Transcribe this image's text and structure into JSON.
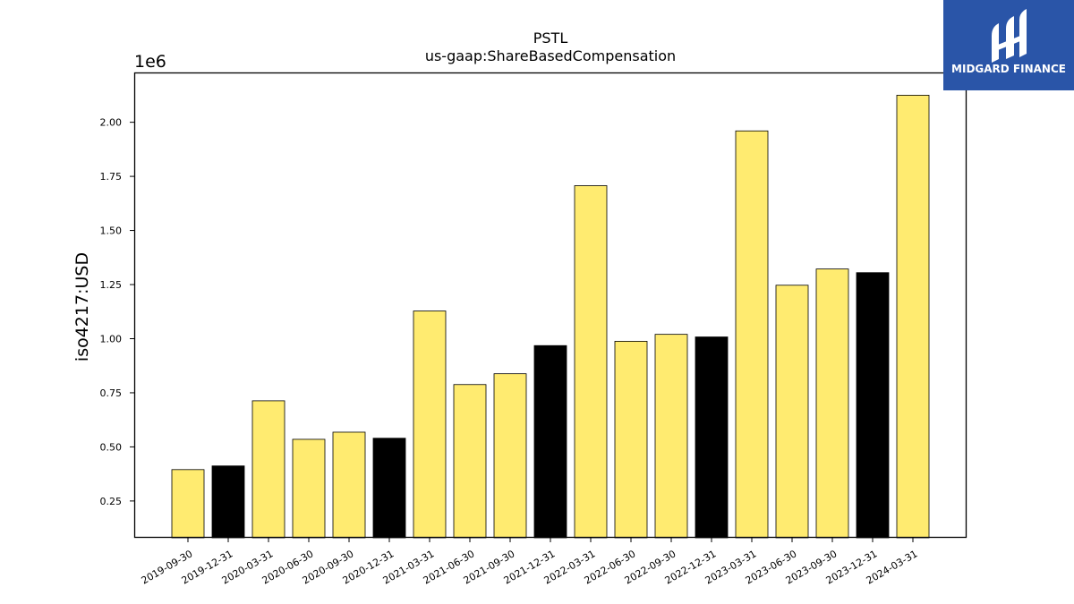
{
  "chart_data": {
    "type": "bar",
    "title": "PSTL",
    "subtitle": "us-gaap:ShareBasedCompensation",
    "ylabel": "iso4217:USD",
    "xlabel": "",
    "y_multiplier_label": "1e6",
    "ylim": [
      80000,
      2230000
    ],
    "y_ticks": [
      250000,
      500000,
      750000,
      1000000,
      1250000,
      1500000,
      1750000,
      2000000
    ],
    "y_tick_labels": [
      "0.25",
      "0.50",
      "0.75",
      "1.00",
      "1.25",
      "1.50",
      "1.75",
      "2.00"
    ],
    "categories": [
      "2019-09-30",
      "2019-12-31",
      "2020-03-31",
      "2020-06-30",
      "2020-09-30",
      "2020-12-31",
      "2021-03-31",
      "2021-06-30",
      "2021-09-30",
      "2021-12-31",
      "2022-03-31",
      "2022-06-30",
      "2022-09-30",
      "2022-12-31",
      "2023-03-31",
      "2023-06-30",
      "2023-09-30",
      "2023-12-31",
      "2024-03-31"
    ],
    "values": [
      395000,
      412000,
      713000,
      535000,
      568000,
      540000,
      1128000,
      788000,
      838000,
      968000,
      1707000,
      988000,
      1020000,
      1008000,
      1960000,
      1247000,
      1322000,
      1305000,
      2125000
    ],
    "quarter_end_of_year": [
      false,
      true,
      false,
      false,
      false,
      true,
      false,
      false,
      false,
      true,
      false,
      false,
      false,
      true,
      false,
      false,
      false,
      true,
      false
    ],
    "colors": {
      "bar": "#ffeb70",
      "bar_year_end": "#000000",
      "edge": "#000000"
    },
    "grid": false,
    "legend": "none"
  },
  "logo": {
    "text": "MIDGARD FINANCE",
    "background": "#2a55a8",
    "foreground": "#ffffff"
  }
}
